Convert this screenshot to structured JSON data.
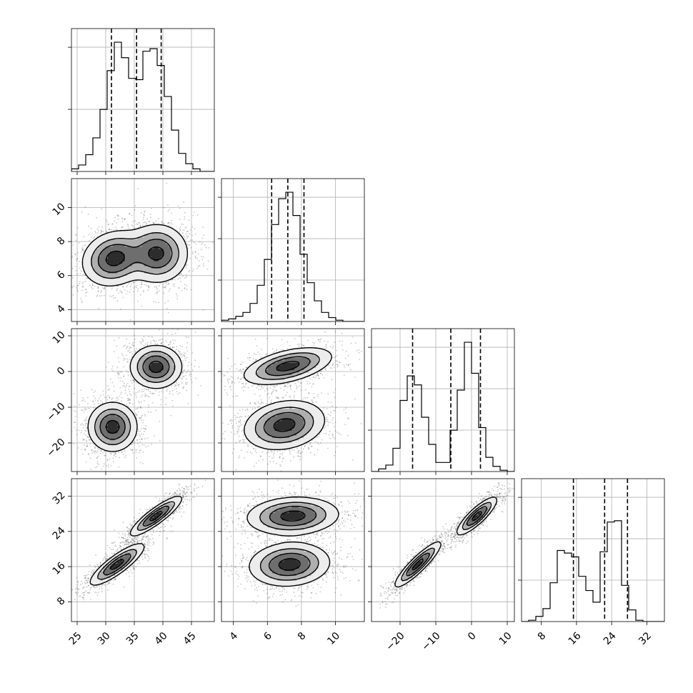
{
  "chart_data": {
    "type": "corner",
    "parameters": [
      {
        "range": [
          24,
          49
        ],
        "ticks": [
          25,
          30,
          35,
          40,
          45
        ],
        "tick_labels": [
          "25",
          "30",
          "35",
          "40",
          "45"
        ],
        "quantiles": [
          31.0,
          35.4,
          39.7
        ],
        "hist_edges_start": 24,
        "hist_bin_width": 1.25,
        "hist_counts": [
          0.02,
          0.05,
          0.13,
          0.26,
          0.48,
          0.78,
          1.0,
          0.88,
          0.72,
          0.71,
          0.93,
          0.95,
          0.82,
          0.58,
          0.32,
          0.14,
          0.06,
          0.02,
          0.0,
          0.0
        ],
        "y_ticks": [
          0.5,
          1.0
        ]
      },
      {
        "range": [
          3.3,
          11.7
        ],
        "ticks": [
          4,
          6,
          8,
          10
        ],
        "tick_labels": [
          "4",
          "6",
          "8",
          "10"
        ],
        "quantiles": [
          6.25,
          7.2,
          8.15
        ],
        "hist_edges_start": 3.3,
        "hist_bin_width": 0.42,
        "hist_counts": [
          0.01,
          0.02,
          0.04,
          0.07,
          0.14,
          0.28,
          0.48,
          0.75,
          0.95,
          1.0,
          0.82,
          0.52,
          0.3,
          0.16,
          0.07,
          0.03,
          0.01,
          0.0,
          0.0,
          0.0
        ],
        "y_ticks": [
          0.3,
          0.6,
          0.9
        ]
      },
      {
        "range": [
          -28,
          12
        ],
        "ticks": [
          -20,
          -10,
          0,
          10
        ],
        "tick_labels": [
          "−20",
          "−10",
          "0",
          "10"
        ],
        "quantiles": [
          -16.5,
          -5.8,
          2.5
        ],
        "hist_edges_start": -28,
        "hist_bin_width": 2.0,
        "hist_counts": [
          0.0,
          0.02,
          0.05,
          0.18,
          0.55,
          0.74,
          0.67,
          0.42,
          0.21,
          0.07,
          0.07,
          0.32,
          0.63,
          1.0,
          0.76,
          0.34,
          0.11,
          0.04,
          0.01,
          0.0
        ],
        "y_ticks": [
          0.3,
          0.6,
          0.9
        ]
      },
      {
        "range": [
          3.5,
          36
        ],
        "ticks": [
          8,
          16,
          24,
          32
        ],
        "tick_labels": [
          "8",
          "16",
          "24",
          "32"
        ],
        "quantiles": [
          15.3,
          22.4,
          27.6
        ],
        "hist_edges_start": 3.5,
        "hist_bin_width": 1.625,
        "hist_counts": [
          0.0,
          0.01,
          0.04,
          0.1,
          0.3,
          0.55,
          0.53,
          0.5,
          0.35,
          0.24,
          0.15,
          0.54,
          0.77,
          0.78,
          0.28,
          0.09,
          0.01,
          0.0,
          0.0,
          0.0
        ],
        "y_ticks": [
          0.6,
          1.2,
          1.8
        ]
      }
    ],
    "pair_components": [
      {
        "pair": [
          1,
          0
        ],
        "components": [
          {
            "cx": 31.5,
            "cy": 7.0,
            "sx": 2.6,
            "sy": 0.75,
            "rho": 0.15,
            "w": 1.0
          },
          {
            "cx": 39.0,
            "cy": 7.3,
            "sx": 2.5,
            "sy": 0.8,
            "rho": 0.0,
            "w": 0.95
          }
        ]
      },
      {
        "pair": [
          2,
          0
        ],
        "components": [
          {
            "cx": 31.2,
            "cy": -15.5,
            "sx": 2.0,
            "sy": 3.2,
            "rho": 0.0,
            "w": 1.0
          },
          {
            "cx": 38.8,
            "cy": 1.3,
            "sx": 2.1,
            "sy": 2.8,
            "rho": 0.0,
            "w": 1.0
          }
        ]
      },
      {
        "pair": [
          2,
          1
        ],
        "components": [
          {
            "cx": 7.2,
            "cy": 1.5,
            "sx": 1.2,
            "sy": 2.4,
            "rho": 0.5,
            "w": 1.0
          },
          {
            "cx": 7.0,
            "cy": -15.0,
            "sx": 1.1,
            "sy": 3.2,
            "rho": 0.2,
            "w": 1.0
          }
        ]
      },
      {
        "pair": [
          3,
          0
        ],
        "components": [
          {
            "cx": 32.0,
            "cy": 16.5,
            "sx": 2.2,
            "sy": 2.2,
            "rho": 0.85,
            "w": 1.0
          },
          {
            "cx": 38.8,
            "cy": 27.5,
            "sx": 2.1,
            "sy": 2.1,
            "rho": 0.88,
            "w": 1.0
          }
        ]
      },
      {
        "pair": [
          3,
          1
        ],
        "components": [
          {
            "cx": 7.3,
            "cy": 16.5,
            "sx": 1.1,
            "sy": 2.3,
            "rho": 0.1,
            "w": 1.0
          },
          {
            "cx": 7.5,
            "cy": 27.5,
            "sx": 1.25,
            "sy": 2.0,
            "rho": 0.1,
            "w": 1.0
          }
        ]
      },
      {
        "pair": [
          3,
          2
        ],
        "components": [
          {
            "cx": -15.0,
            "cy": 16.5,
            "sx": 3.0,
            "sy": 2.4,
            "rho": 0.9,
            "w": 1.0
          },
          {
            "cx": 1.5,
            "cy": 27.5,
            "sx": 2.6,
            "sy": 2.0,
            "rho": 0.85,
            "w": 1.0
          }
        ]
      }
    ],
    "contour_levels": [
      0.85,
      0.55,
      0.3,
      0.1
    ],
    "grid": true,
    "colors": {
      "hist": "#000000",
      "contour": "#000000",
      "density": "#000000",
      "grid": "#b0b0b0"
    }
  }
}
